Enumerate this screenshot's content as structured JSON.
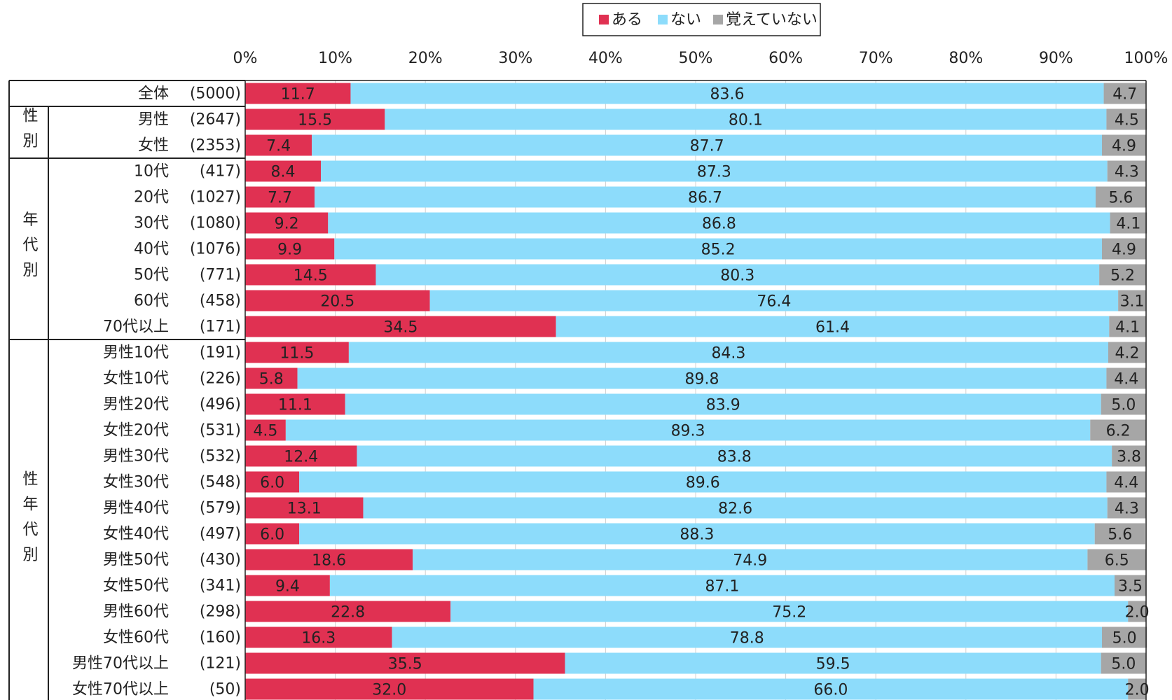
{
  "chart_data": {
    "type": "stacked-bar-horizontal",
    "categories": [
      "全体",
      "男性",
      "女性",
      "10代",
      "20代",
      "30代",
      "40代",
      "50代",
      "60代",
      "70代以上",
      "男性10代",
      "女性10代",
      "男性20代",
      "女性20代",
      "男性30代",
      "女性30代",
      "男性40代",
      "女性40代",
      "男性50代",
      "女性50代",
      "男性60代",
      "女性60代",
      "男性70代以上",
      "女性70代以上"
    ],
    "counts": [
      "(5000)",
      "(2647)",
      "(2353)",
      "(417)",
      "(1027)",
      "(1080)",
      "(1076)",
      "(771)",
      "(458)",
      "(171)",
      "(191)",
      "(226)",
      "(496)",
      "(531)",
      "(532)",
      "(548)",
      "(579)",
      "(497)",
      "(430)",
      "(341)",
      "(298)",
      "(160)",
      "(121)",
      "(50)"
    ],
    "groups": [
      "性別",
      "年代別",
      "性年代別"
    ],
    "series": [
      {
        "name": "ある",
        "color": "#e03152",
        "label_color": "#ffffff",
        "values": [
          11.7,
          15.5,
          7.4,
          8.4,
          7.7,
          9.2,
          9.9,
          14.5,
          20.5,
          34.5,
          11.5,
          5.8,
          11.1,
          4.5,
          12.4,
          6.0,
          13.1,
          6.0,
          18.6,
          9.4,
          22.8,
          16.3,
          35.5,
          32.0
        ],
        "value_labels": [
          "11.7",
          "15.5",
          "7.4",
          "8.4",
          "7.7",
          "9.2",
          "9.9",
          "14.5",
          "20.5",
          "34.5",
          "11.5",
          "5.8",
          "11.1",
          "4.5",
          "12.4",
          "6.0",
          "13.1",
          "6.0",
          "18.6",
          "9.4",
          "22.8",
          "16.3",
          "35.5",
          "32.0"
        ]
      },
      {
        "name": "ない",
        "color": "#8ddcfb",
        "label_color": "#222222",
        "values": [
          83.6,
          80.1,
          87.7,
          87.3,
          86.7,
          86.8,
          85.2,
          80.3,
          76.4,
          61.4,
          84.3,
          89.8,
          83.9,
          89.3,
          83.8,
          89.6,
          82.6,
          88.3,
          74.9,
          87.1,
          75.2,
          78.8,
          59.5,
          66.0
        ],
        "value_labels": [
          "83.6",
          "80.1",
          "87.7",
          "87.3",
          "86.7",
          "86.8",
          "85.2",
          "80.3",
          "76.4",
          "61.4",
          "84.3",
          "89.8",
          "83.9",
          "89.3",
          "83.8",
          "89.6",
          "82.6",
          "88.3",
          "74.9",
          "87.1",
          "75.2",
          "78.8",
          "59.5",
          "66.0"
        ]
      },
      {
        "name": "覚えていない",
        "color": "#a6a6a6",
        "label_color": "#222222",
        "values": [
          4.7,
          4.5,
          4.9,
          4.3,
          5.6,
          4.1,
          4.9,
          5.2,
          3.1,
          4.1,
          4.2,
          4.4,
          5.0,
          6.2,
          3.8,
          4.4,
          4.3,
          5.6,
          6.5,
          3.5,
          2.0,
          5.0,
          5.0,
          2.0
        ],
        "value_labels": [
          "4.7",
          "4.5",
          "4.9",
          "4.3",
          "5.6",
          "4.1",
          "4.9",
          "5.2",
          "3.1",
          "4.1",
          "4.2",
          "4.4",
          "5.0",
          "6.2",
          "3.8",
          "4.4",
          "4.3",
          "5.6",
          "6.5",
          "3.5",
          "2.0",
          "5.0",
          "5.0",
          "2.0"
        ]
      }
    ],
    "xlim": [
      0,
      100
    ],
    "xticks": [
      {
        "value": 0,
        "label": "0%"
      },
      {
        "value": 10,
        "label": "10%"
      },
      {
        "value": 20,
        "label": "20%"
      },
      {
        "value": 30,
        "label": "30%"
      },
      {
        "value": 40,
        "label": "40%"
      },
      {
        "value": 50,
        "label": "50%"
      },
      {
        "value": 60,
        "label": "60%"
      },
      {
        "value": 70,
        "label": "70%"
      },
      {
        "value": 80,
        "label": "80%"
      },
      {
        "value": 90,
        "label": "90%"
      },
      {
        "value": 100,
        "label": "100%"
      }
    ],
    "grid": true
  }
}
